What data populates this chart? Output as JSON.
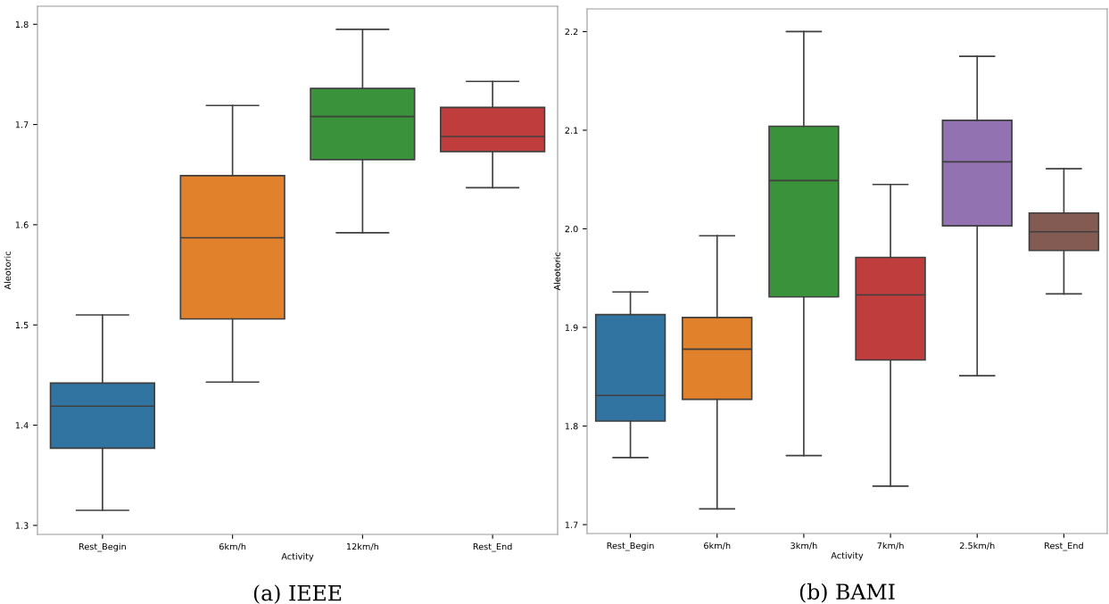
{
  "chart_data": [
    {
      "type": "box",
      "title": "(a) IEEE",
      "xlabel": "Activity",
      "ylabel": "Aleotoric",
      "categories": [
        "Rest_Begin",
        "6km/h",
        "12km/h",
        "Rest_End"
      ],
      "colors": [
        "#3274a1",
        "#e1812c",
        "#3a923a",
        "#c03d3e"
      ],
      "boxes": [
        {
          "low": 1.315,
          "q1": 1.377,
          "median": 1.419,
          "q3": 1.442,
          "high": 1.51
        },
        {
          "low": 1.443,
          "q1": 1.506,
          "median": 1.587,
          "q3": 1.649,
          "high": 1.719
        },
        {
          "low": 1.592,
          "q1": 1.665,
          "median": 1.708,
          "q3": 1.736,
          "high": 1.795
        },
        {
          "low": 1.637,
          "q1": 1.673,
          "median": 1.688,
          "q3": 1.717,
          "high": 1.743
        }
      ],
      "ylim": [
        1.291,
        1.818
      ],
      "yticks": [
        1.3,
        1.4,
        1.5,
        1.6,
        1.7,
        1.8
      ],
      "grid": false
    },
    {
      "type": "box",
      "title": "(b) BAMI",
      "xlabel": "Activity",
      "ylabel": "Aleotoric",
      "categories": [
        "Rest_Begin",
        "6km/h",
        "3km/h",
        "7km/h",
        "2.5km/h",
        "Rest_End"
      ],
      "colors": [
        "#3274a1",
        "#e1812c",
        "#3a923a",
        "#c03d3e",
        "#9372b2",
        "#845b53"
      ],
      "boxes": [
        {
          "low": 1.768,
          "q1": 1.805,
          "median": 1.831,
          "q3": 1.913,
          "high": 1.936
        },
        {
          "low": 1.716,
          "q1": 1.827,
          "median": 1.878,
          "q3": 1.91,
          "high": 1.993
        },
        {
          "low": 1.77,
          "q1": 1.931,
          "median": 2.049,
          "q3": 2.104,
          "high": 2.2
        },
        {
          "low": 1.739,
          "q1": 1.867,
          "median": 1.933,
          "q3": 1.971,
          "high": 2.045
        },
        {
          "low": 1.851,
          "q1": 2.003,
          "median": 2.068,
          "q3": 2.11,
          "high": 2.175
        },
        {
          "low": 1.934,
          "q1": 1.978,
          "median": 1.997,
          "q3": 2.016,
          "high": 2.061
        }
      ],
      "ylim": [
        1.691,
        2.223
      ],
      "yticks": [
        1.7,
        1.8,
        {
          "value": 1.9,
          "label": "1.9"
        },
        {
          "value": 2,
          "label": "2.0"
        },
        2.1,
        2.2
      ],
      "grid": false
    }
  ]
}
